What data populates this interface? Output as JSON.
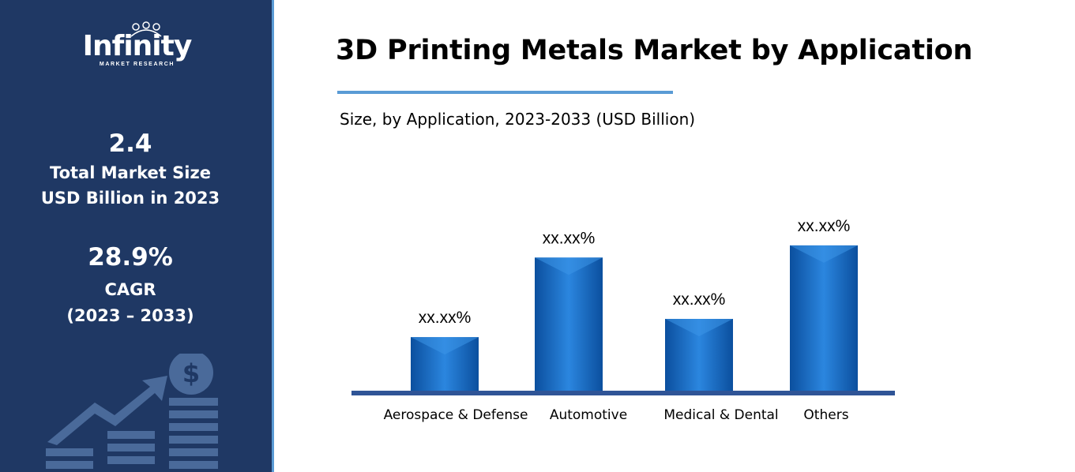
{
  "brand": {
    "logo_text": "Infinity",
    "logo_subtext": "MARKET RESEARCH"
  },
  "sidebar": {
    "market_size_value": "2.4",
    "market_size_label_1": "Total Market Size",
    "market_size_label_2": "USD Billion in 2023",
    "cagr_value": "28.9%",
    "cagr_label": "CAGR",
    "cagr_period": "(2023 – 2033)",
    "decor_icon": "growth-chart-dollar-icon"
  },
  "header": {
    "title": "3D Printing Metals Market by Application",
    "subtitle": "Size, by Application, 2023-2033 (USD Billion)"
  },
  "colors": {
    "sidebar_bg": "#1f3864",
    "accent": "#5a9bd5",
    "bar": "#1f6fc2",
    "baseline": "#2f5496"
  },
  "chart_data": {
    "type": "bar",
    "categories": [
      "Aerospace & Defense",
      "Automotive",
      "Medical & Dental",
      "Others"
    ],
    "values": [
      0.97,
      2.41,
      1.3,
      2.63
    ],
    "data_labels": [
      "xx.xx%",
      "xx.xx%",
      "xx.xx%",
      "xx.xx%"
    ],
    "ylim": [
      0,
      3
    ],
    "grid": false,
    "legend": "none",
    "xlabel": "",
    "ylabel": ""
  }
}
